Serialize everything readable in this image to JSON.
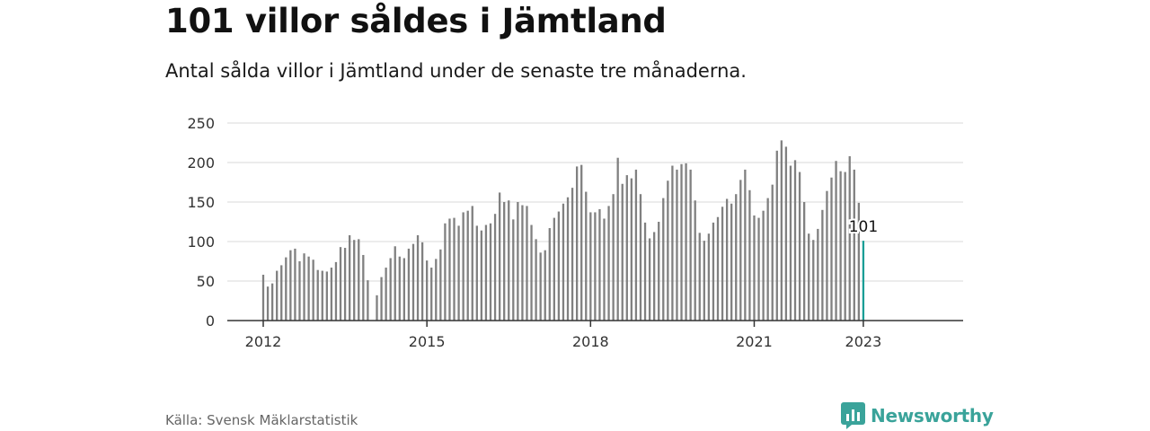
{
  "title": "101 villor såldes i Jämtland",
  "subtitle": "Antal sålda villor i Jämtland under de senaste tre månaderna.",
  "source": "Källa: Svensk Mäklarstatistik",
  "brand": {
    "name": "Newsworthy",
    "color": "#3aa39a"
  },
  "colors": {
    "bar": "#808080",
    "highlight": "#1a9e96",
    "grid": "#d9d9d9",
    "axis": "#333333"
  },
  "chart_data": {
    "type": "bar",
    "title": "101 villor såldes i Jämtland",
    "xlabel": "",
    "ylabel": "",
    "ylim": [
      0,
      250
    ],
    "yticks": [
      "0",
      "50",
      "100",
      "150",
      "200",
      "250"
    ],
    "xticks": [
      "2012",
      "2015",
      "2018",
      "2021",
      "2023"
    ],
    "x_start": "2012-01",
    "highlight_label": "101",
    "values": [
      58,
      43,
      47,
      63,
      70,
      80,
      89,
      91,
      75,
      85,
      81,
      77,
      64,
      63,
      62,
      67,
      74,
      93,
      92,
      108,
      102,
      103,
      83,
      51,
      null,
      32,
      55,
      67,
      79,
      94,
      81,
      79,
      91,
      97,
      108,
      99,
      76,
      67,
      78,
      90,
      123,
      129,
      130,
      120,
      137,
      139,
      145,
      120,
      114,
      121,
      123,
      135,
      162,
      150,
      152,
      128,
      150,
      146,
      145,
      121,
      103,
      86,
      89,
      117,
      130,
      138,
      148,
      156,
      168,
      195,
      197,
      163,
      137,
      137,
      141,
      129,
      145,
      160,
      206,
      173,
      184,
      180,
      191,
      160,
      124,
      104,
      112,
      125,
      155,
      177,
      196,
      191,
      198,
      199,
      191,
      152,
      111,
      101,
      110,
      124,
      131,
      144,
      154,
      148,
      160,
      178,
      191,
      165,
      133,
      130,
      139,
      155,
      172,
      215,
      228,
      220,
      196,
      203,
      188,
      150,
      110,
      102,
      116,
      140,
      164,
      181,
      202,
      189,
      188,
      208,
      191,
      149,
      101
    ]
  }
}
